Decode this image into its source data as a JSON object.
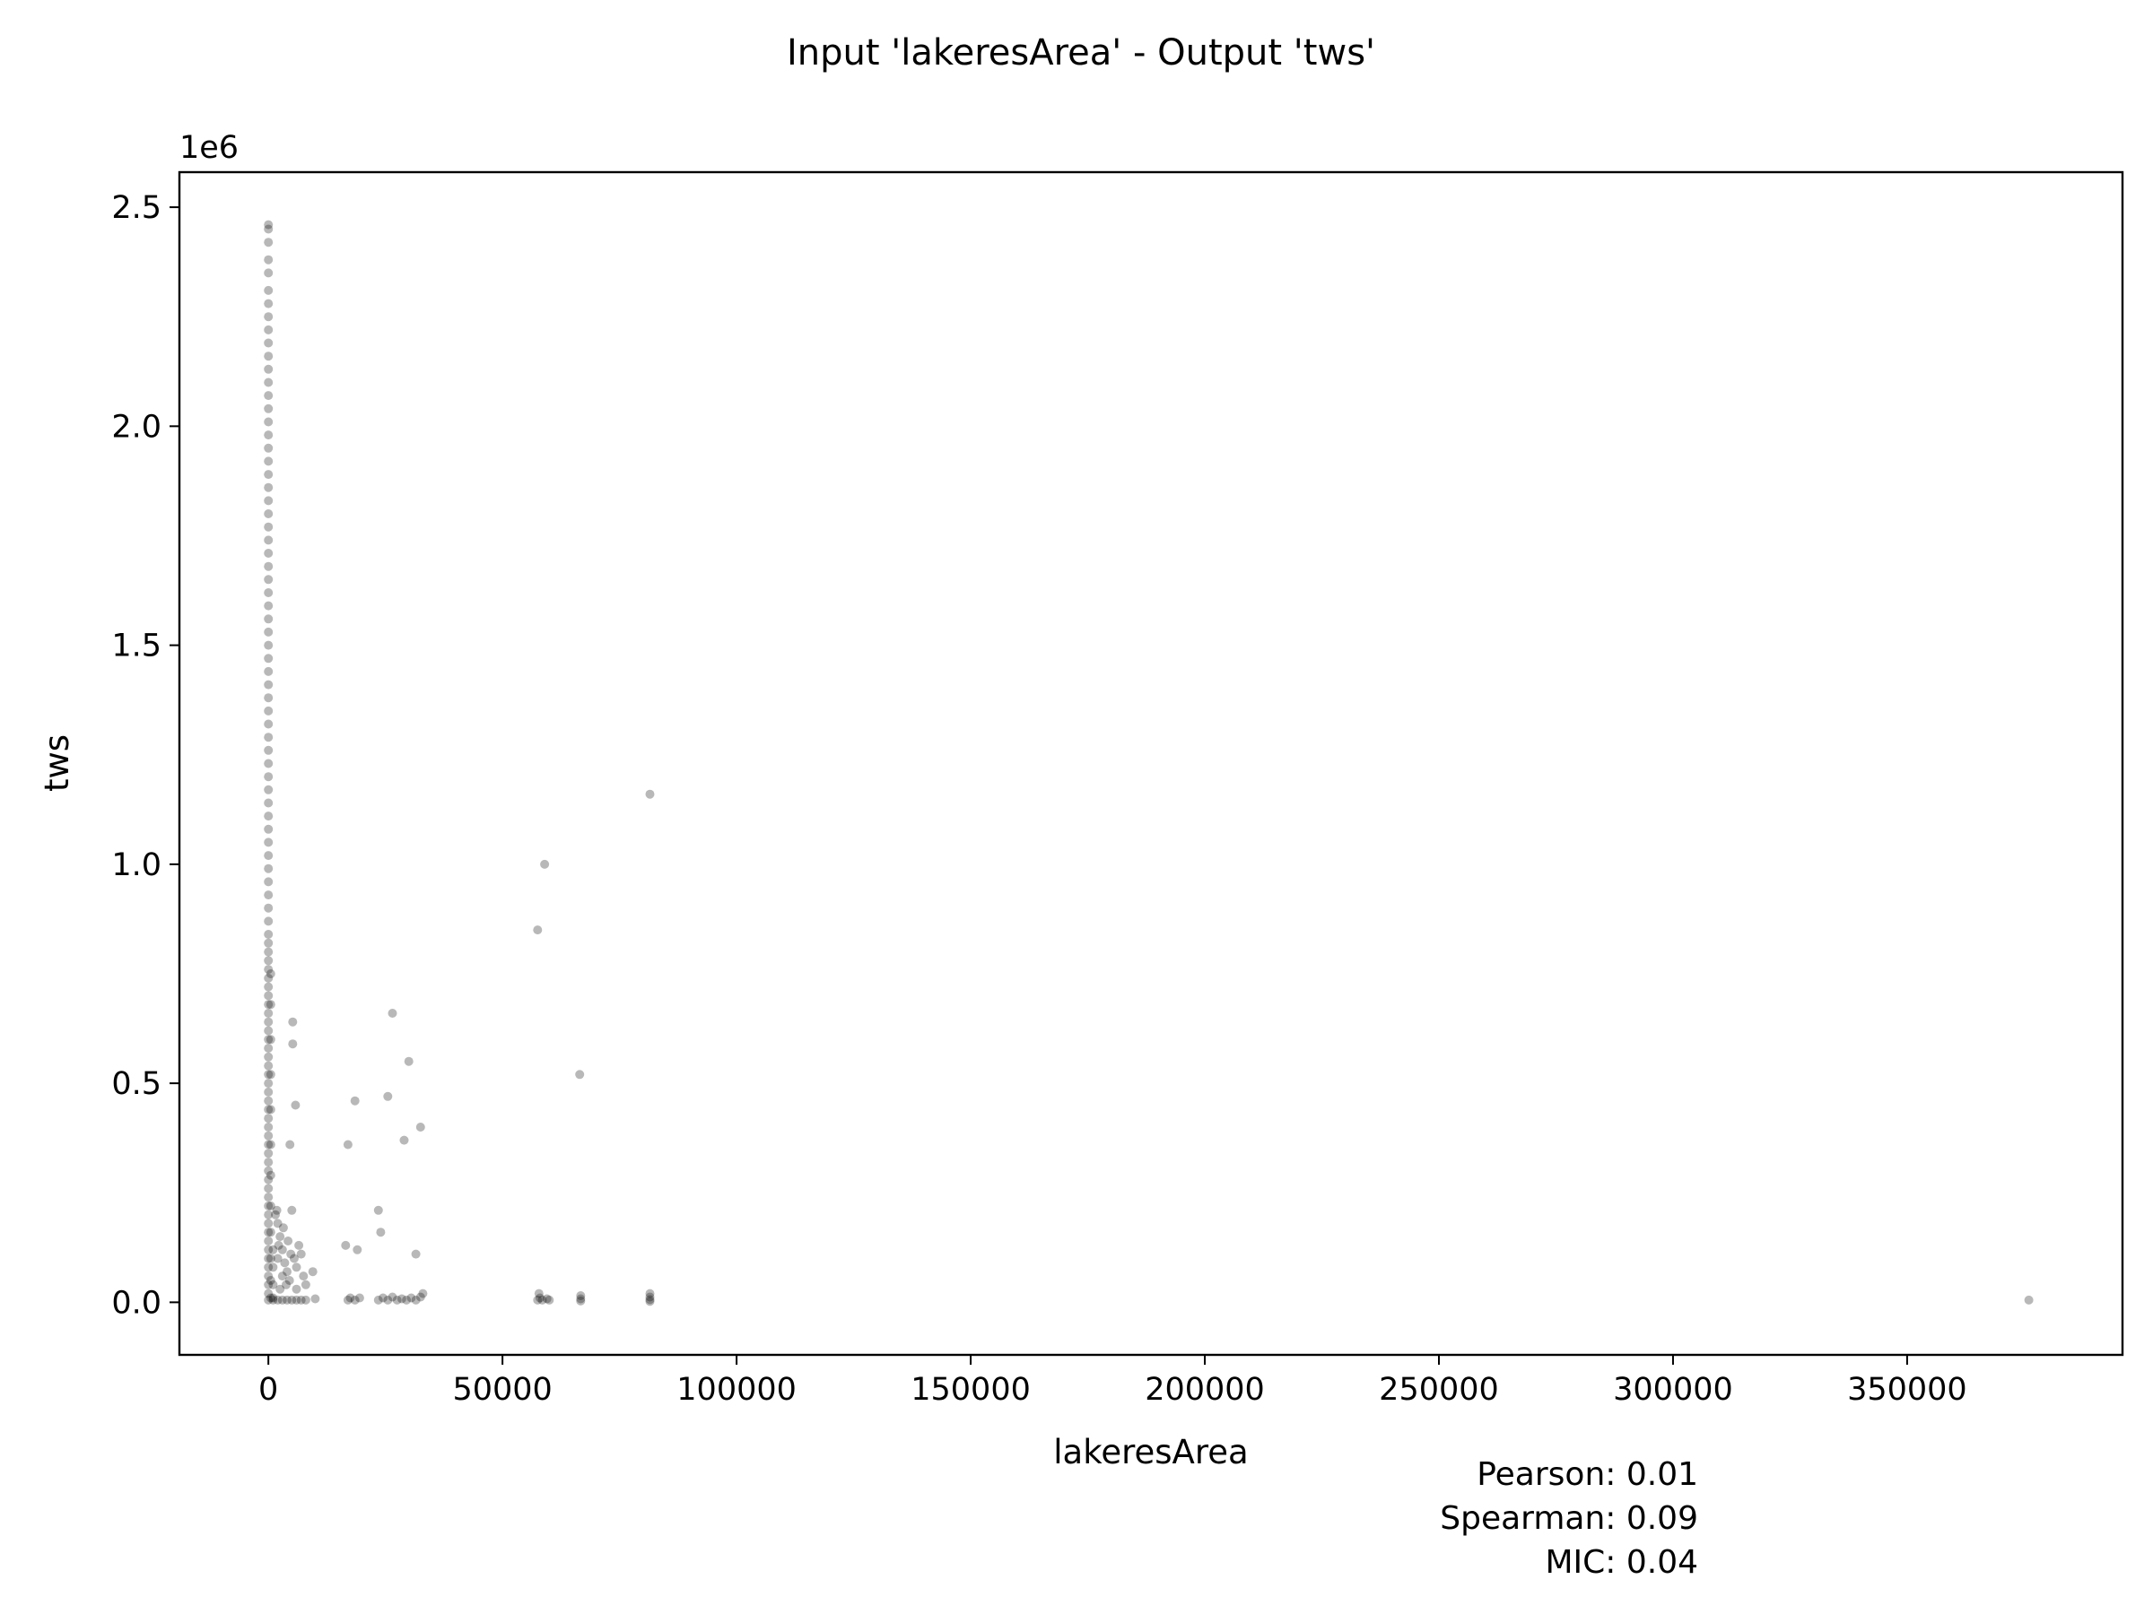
{
  "chart_data": {
    "type": "scatter",
    "title": "Input 'lakeresArea' - Output 'tws'",
    "xlabel": "lakeresArea",
    "ylabel": "tws",
    "y_offset_label": "1e6",
    "y_multiplier": 1000000,
    "xlim": [
      -19000,
      396000
    ],
    "ylim": [
      -0.12,
      2.58
    ],
    "x_ticks": [
      0,
      50000,
      100000,
      150000,
      200000,
      250000,
      300000,
      350000
    ],
    "x_tick_labels": [
      "0",
      "50000",
      "100000",
      "150000",
      "200000",
      "250000",
      "300000",
      "350000"
    ],
    "y_ticks": [
      0.0,
      0.5,
      1.0,
      1.5,
      2.0,
      2.5
    ],
    "y_tick_labels": [
      "0.0",
      "0.5",
      "1.0",
      "1.5",
      "2.0",
      "2.5"
    ],
    "grid": false,
    "legend": "none",
    "marker_color": "#000000",
    "marker_alpha": 0.28,
    "stats": [
      "Pearson: 0.01",
      "Spearman: 0.09",
      "MIC: 0.04"
    ],
    "points": [
      [
        0,
        2.46
      ],
      [
        0,
        2.45
      ],
      [
        0,
        2.42
      ],
      [
        0,
        2.38
      ],
      [
        0,
        2.35
      ],
      [
        0,
        2.31
      ],
      [
        0,
        2.28
      ],
      [
        0,
        2.25
      ],
      [
        0,
        2.22
      ],
      [
        0,
        2.19
      ],
      [
        0,
        2.16
      ],
      [
        0,
        2.13
      ],
      [
        0,
        2.1
      ],
      [
        0,
        2.07
      ],
      [
        0,
        2.04
      ],
      [
        0,
        2.01
      ],
      [
        0,
        1.98
      ],
      [
        0,
        1.95
      ],
      [
        0,
        1.92
      ],
      [
        0,
        1.89
      ],
      [
        0,
        1.86
      ],
      [
        0,
        1.83
      ],
      [
        0,
        1.8
      ],
      [
        0,
        1.77
      ],
      [
        0,
        1.74
      ],
      [
        0,
        1.71
      ],
      [
        0,
        1.68
      ],
      [
        0,
        1.65
      ],
      [
        0,
        1.62
      ],
      [
        0,
        1.59
      ],
      [
        0,
        1.56
      ],
      [
        0,
        1.53
      ],
      [
        0,
        1.5
      ],
      [
        0,
        1.47
      ],
      [
        0,
        1.44
      ],
      [
        0,
        1.41
      ],
      [
        0,
        1.38
      ],
      [
        0,
        1.35
      ],
      [
        0,
        1.32
      ],
      [
        0,
        1.29
      ],
      [
        0,
        1.26
      ],
      [
        0,
        1.23
      ],
      [
        0,
        1.2
      ],
      [
        0,
        1.17
      ],
      [
        0,
        1.14
      ],
      [
        0,
        1.11
      ],
      [
        0,
        1.08
      ],
      [
        0,
        1.05
      ],
      [
        0,
        1.02
      ],
      [
        0,
        0.99
      ],
      [
        0,
        0.96
      ],
      [
        0,
        0.93
      ],
      [
        0,
        0.9
      ],
      [
        0,
        0.87
      ],
      [
        0,
        0.84
      ],
      [
        0,
        0.82
      ],
      [
        0,
        0.8
      ],
      [
        0,
        0.78
      ],
      [
        0,
        0.76
      ],
      [
        0,
        0.74
      ],
      [
        0,
        0.72
      ],
      [
        0,
        0.7
      ],
      [
        0,
        0.68
      ],
      [
        0,
        0.66
      ],
      [
        0,
        0.64
      ],
      [
        0,
        0.62
      ],
      [
        0,
        0.6
      ],
      [
        0,
        0.58
      ],
      [
        0,
        0.56
      ],
      [
        0,
        0.54
      ],
      [
        0,
        0.52
      ],
      [
        0,
        0.5
      ],
      [
        0,
        0.48
      ],
      [
        0,
        0.46
      ],
      [
        0,
        0.44
      ],
      [
        0,
        0.42
      ],
      [
        0,
        0.4
      ],
      [
        0,
        0.38
      ],
      [
        0,
        0.36
      ],
      [
        0,
        0.34
      ],
      [
        0,
        0.32
      ],
      [
        0,
        0.3
      ],
      [
        0,
        0.28
      ],
      [
        0,
        0.26
      ],
      [
        0,
        0.24
      ],
      [
        0,
        0.22
      ],
      [
        0,
        0.2
      ],
      [
        0,
        0.18
      ],
      [
        0,
        0.16
      ],
      [
        0,
        0.14
      ],
      [
        0,
        0.12
      ],
      [
        0,
        0.1
      ],
      [
        0,
        0.08
      ],
      [
        0,
        0.06
      ],
      [
        0,
        0.04
      ],
      [
        0,
        0.02
      ],
      [
        0,
        0.005
      ],
      [
        500,
        0.75
      ],
      [
        500,
        0.68
      ],
      [
        500,
        0.6
      ],
      [
        500,
        0.52
      ],
      [
        500,
        0.44
      ],
      [
        500,
        0.36
      ],
      [
        500,
        0.29
      ],
      [
        500,
        0.22
      ],
      [
        500,
        0.16
      ],
      [
        500,
        0.1
      ],
      [
        500,
        0.05
      ],
      [
        500,
        0.01
      ],
      [
        1000,
        0.12
      ],
      [
        1000,
        0.08
      ],
      [
        1000,
        0.04
      ],
      [
        1000,
        0.01
      ],
      [
        1500,
        0.2
      ],
      [
        2000,
        0.18
      ],
      [
        2500,
        0.15
      ],
      [
        3000,
        0.12
      ],
      [
        3500,
        0.09
      ],
      [
        4000,
        0.07
      ],
      [
        4500,
        0.05
      ],
      [
        2000,
        0.1
      ],
      [
        3000,
        0.06
      ],
      [
        2500,
        0.03
      ],
      [
        1800,
        0.21
      ],
      [
        2200,
        0.13
      ],
      [
        3200,
        0.17
      ],
      [
        4200,
        0.14
      ],
      [
        3800,
        0.04
      ],
      [
        5000,
        0.21
      ],
      [
        5500,
        0.1
      ],
      [
        6000,
        0.08
      ],
      [
        6500,
        0.13
      ],
      [
        7000,
        0.11
      ],
      [
        7500,
        0.06
      ],
      [
        8000,
        0.04
      ],
      [
        9500,
        0.07
      ],
      [
        6000,
        0.03
      ],
      [
        4800,
        0.11
      ],
      [
        5200,
        0.64
      ],
      [
        5200,
        0.59
      ],
      [
        5800,
        0.45
      ],
      [
        4600,
        0.36
      ],
      [
        1000,
        0.005
      ],
      [
        2000,
        0.005
      ],
      [
        3000,
        0.005
      ],
      [
        4000,
        0.005
      ],
      [
        5000,
        0.005
      ],
      [
        6000,
        0.005
      ],
      [
        7000,
        0.005
      ],
      [
        8000,
        0.005
      ],
      [
        10000,
        0.008
      ],
      [
        16500,
        0.13
      ],
      [
        17000,
        0.36
      ],
      [
        18500,
        0.46
      ],
      [
        19000,
        0.12
      ],
      [
        23500,
        0.21
      ],
      [
        24000,
        0.16
      ],
      [
        25500,
        0.47
      ],
      [
        26500,
        0.66
      ],
      [
        29000,
        0.37
      ],
      [
        30000,
        0.55
      ],
      [
        31500,
        0.11
      ],
      [
        32500,
        0.4
      ],
      [
        17000,
        0.005
      ],
      [
        17500,
        0.01
      ],
      [
        18500,
        0.005
      ],
      [
        19500,
        0.01
      ],
      [
        23500,
        0.005
      ],
      [
        24500,
        0.01
      ],
      [
        25500,
        0.005
      ],
      [
        26500,
        0.012
      ],
      [
        27500,
        0.005
      ],
      [
        28500,
        0.008
      ],
      [
        29500,
        0.005
      ],
      [
        30500,
        0.01
      ],
      [
        31500,
        0.005
      ],
      [
        32500,
        0.012
      ],
      [
        33000,
        0.02
      ],
      [
        57500,
        0.85
      ],
      [
        59000,
        1.0
      ],
      [
        57800,
        0.02
      ],
      [
        57500,
        0.005
      ],
      [
        58000,
        0.01
      ],
      [
        58500,
        0.005
      ],
      [
        59500,
        0.008
      ],
      [
        60000,
        0.005
      ],
      [
        66500,
        0.52
      ],
      [
        66700,
        0.015
      ],
      [
        66700,
        0.008
      ],
      [
        66700,
        0.003
      ],
      [
        81500,
        1.16
      ],
      [
        81500,
        0.02
      ],
      [
        81500,
        0.012
      ],
      [
        81500,
        0.006
      ],
      [
        81500,
        0.002
      ],
      [
        376000,
        0.005
      ]
    ]
  }
}
